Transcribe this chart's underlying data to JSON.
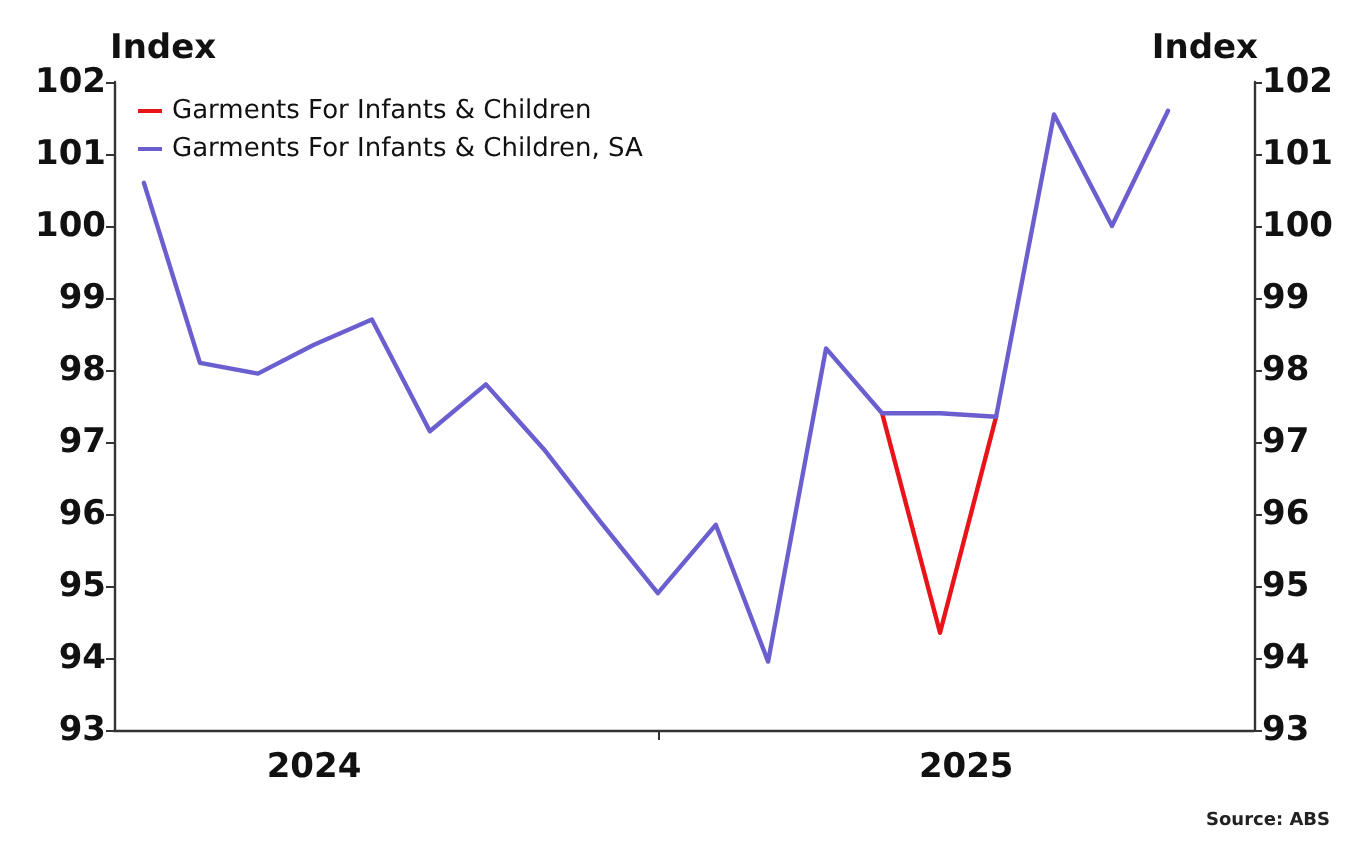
{
  "chart_data": {
    "type": "line",
    "x": [
      "2024-04",
      "2024-05",
      "2024-06",
      "2024-07",
      "2024-08",
      "2024-09",
      "2024-10",
      "2024-11",
      "2024-12",
      "2025-01",
      "2025-02",
      "2025-03",
      "2025-04",
      "2025-05",
      "2025-06",
      "2025-07",
      "2025-08",
      "2025-09",
      "2025-10"
    ],
    "series": [
      {
        "name": "Garments For Infants & Children",
        "color": "#e8141a",
        "values": [
          null,
          null,
          null,
          null,
          null,
          null,
          null,
          null,
          null,
          null,
          null,
          null,
          null,
          97.4,
          94.35,
          97.35,
          null,
          null,
          null
        ]
      },
      {
        "name": "Garments For Infants & Children, SA",
        "color": "#6b5fd0",
        "values": [
          100.6,
          98.1,
          97.95,
          98.35,
          98.7,
          97.15,
          97.8,
          96.9,
          95.9,
          94.9,
          95.85,
          93.95,
          98.3,
          97.4,
          97.4,
          97.35,
          101.55,
          100.0,
          101.6
        ]
      }
    ],
    "xlim": [
      "2024-03-16",
      "2025-11-16"
    ],
    "xticks": [
      {
        "value": "2024-07-01",
        "label": "2024"
      },
      {
        "value": "2025-01-01",
        "label": null
      },
      {
        "value": "2025-06-15",
        "label": "2025"
      }
    ],
    "ylabel": "Index",
    "y2label": "Index",
    "ylim": [
      93,
      102
    ],
    "yticks": [
      93,
      94,
      95,
      96,
      97,
      98,
      99,
      100,
      101,
      102
    ],
    "y2lim": [
      93,
      102
    ],
    "y2ticks": [
      93,
      94,
      95,
      96,
      97,
      98,
      99,
      100,
      101,
      102
    ],
    "legend": "top left",
    "grid": false,
    "marker": "none",
    "line_style": "solid",
    "annotations": [
      "Source: ABS"
    ]
  }
}
